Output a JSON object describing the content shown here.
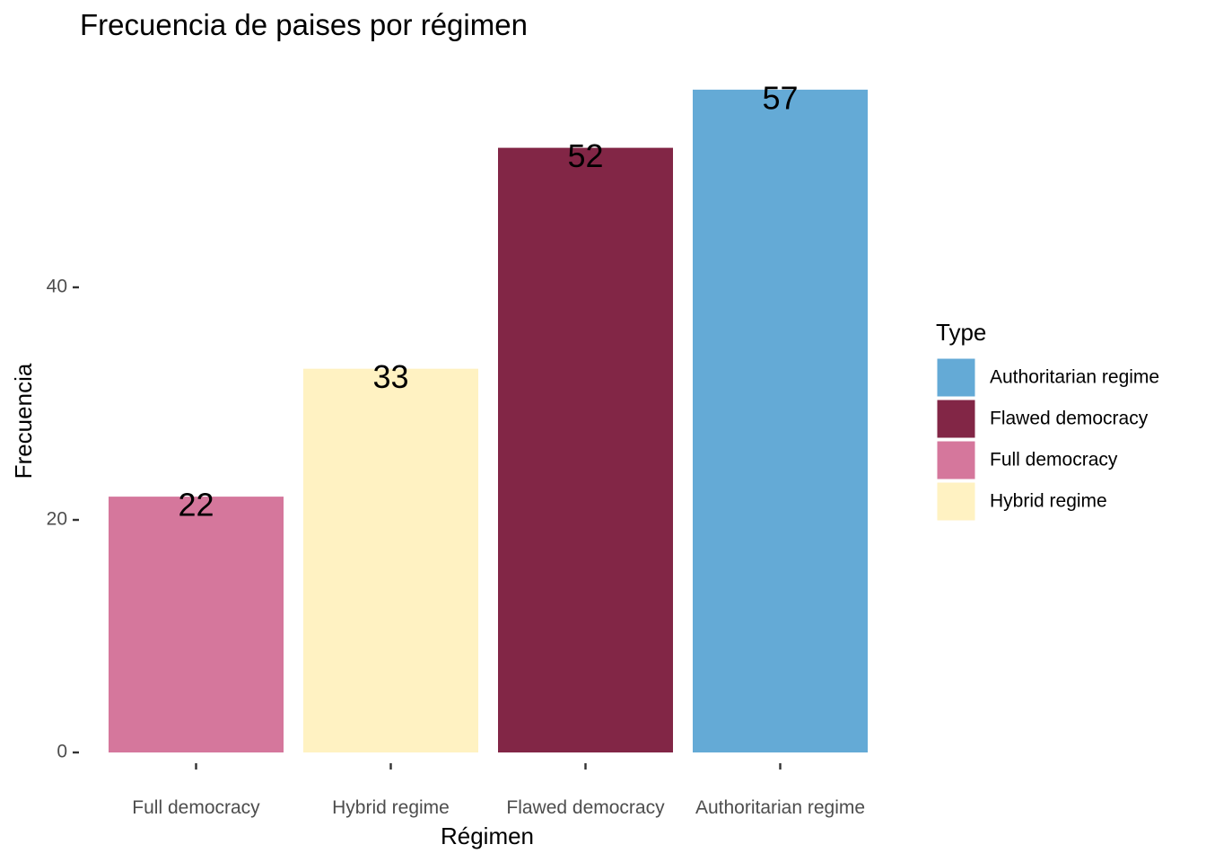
{
  "chart_data": {
    "type": "bar",
    "title": "Frecuencia de paises por régimen",
    "xlabel": "Régimen",
    "ylabel": "Frecuencia",
    "categories": [
      "Full democracy",
      "Hybrid regime",
      "Flawed democracy",
      "Authoritarian regime"
    ],
    "values": [
      22,
      33,
      52,
      57
    ],
    "colors": [
      "#d5779c",
      "#fff2c2",
      "#822646",
      "#64aad6"
    ],
    "yticks": [
      0,
      20,
      40
    ],
    "ylim": [
      0,
      60
    ],
    "grid": false,
    "legend": {
      "title": "Type",
      "placement": "right",
      "items": [
        {
          "label": "Authoritarian regime",
          "color": "#64aad6"
        },
        {
          "label": "Flawed democracy",
          "color": "#822646"
        },
        {
          "label": "Full democracy",
          "color": "#d5779c"
        },
        {
          "label": "Hybrid regime",
          "color": "#fff2c2"
        }
      ]
    }
  }
}
